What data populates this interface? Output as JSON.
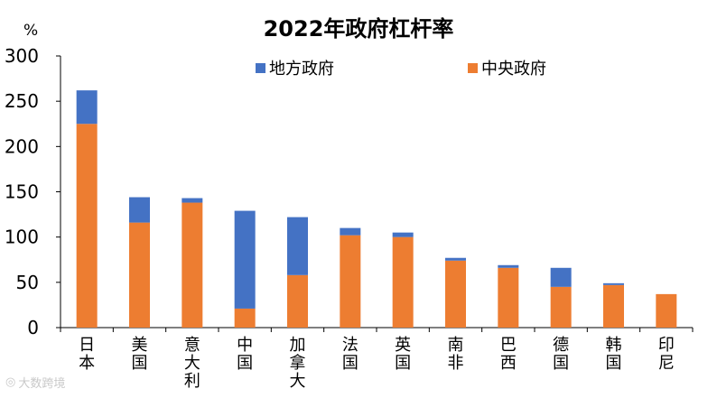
{
  "chart_data": {
    "type": "bar",
    "stacked": true,
    "title": "2022年政府杠杆率",
    "unit_label": "%",
    "categories": [
      "日本",
      "美国",
      "意大利",
      "中国",
      "加拿大",
      "法国",
      "英国",
      "南非",
      "巴西",
      "德国",
      "韩国",
      "印尼"
    ],
    "series": [
      {
        "name": "中央政府",
        "color": "#ED7D31",
        "values": [
          225,
          116,
          138,
          21,
          58,
          102,
          100,
          74,
          66,
          45,
          47,
          37
        ]
      },
      {
        "name": "地方政府",
        "color": "#4472C4",
        "values": [
          37,
          28,
          5,
          108,
          64,
          8,
          5,
          3,
          3,
          21,
          2,
          0
        ]
      }
    ],
    "legend_order": [
      "地方政府",
      "中央政府"
    ],
    "ylim": [
      0,
      300
    ],
    "yticks": [
      0,
      50,
      100,
      150,
      200,
      250,
      300
    ],
    "xlabel": "",
    "ylabel": ""
  },
  "watermark": {
    "icon": "eye-logo-icon",
    "text": "大数跨境"
  }
}
